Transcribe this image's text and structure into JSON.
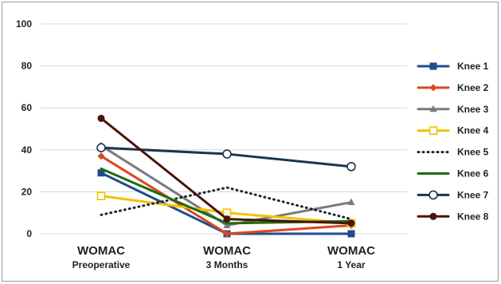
{
  "chart_data": {
    "type": "line",
    "title": "",
    "xlabel": "",
    "ylabel": "",
    "ylim": [
      0,
      100
    ],
    "yticks": [
      0,
      20,
      40,
      60,
      80,
      100
    ],
    "grid": true,
    "legend_position": "right",
    "categories": [
      {
        "line1": "WOMAC",
        "line2": "Preoperative"
      },
      {
        "line1": "WOMAC",
        "line2": "3 Months"
      },
      {
        "line1": "WOMAC",
        "line2": "1 Year"
      }
    ],
    "series": [
      {
        "name": "Knee 1",
        "values": [
          29,
          0,
          0
        ],
        "color": "#1c4e8c",
        "marker": "filled-square",
        "dash": "solid"
      },
      {
        "name": "Knee 2",
        "values": [
          37,
          0,
          4
        ],
        "color": "#d9481c",
        "marker": "filled-diamond",
        "dash": "solid"
      },
      {
        "name": "Knee 3",
        "values": [
          42,
          4,
          15
        ],
        "color": "#7a7a7a",
        "marker": "filled-triangle",
        "dash": "solid"
      },
      {
        "name": "Knee 4",
        "values": [
          18,
          10,
          5
        ],
        "color": "#f2c200",
        "marker": "open-square",
        "dash": "solid"
      },
      {
        "name": "Knee 5",
        "values": [
          9,
          22,
          7
        ],
        "color": "#1c2535",
        "marker": "none",
        "dash": "dotted"
      },
      {
        "name": "Knee 6",
        "values": [
          31,
          5,
          6
        ],
        "color": "#1e6b10",
        "marker": "none",
        "dash": "solid"
      },
      {
        "name": "Knee 7",
        "values": [
          41,
          38,
          32
        ],
        "color": "#1a3550",
        "marker": "open-circle",
        "dash": "solid"
      },
      {
        "name": "Knee 8",
        "values": [
          55,
          7,
          5
        ],
        "color": "#4a1508",
        "marker": "filled-circle",
        "dash": "solid"
      }
    ]
  }
}
